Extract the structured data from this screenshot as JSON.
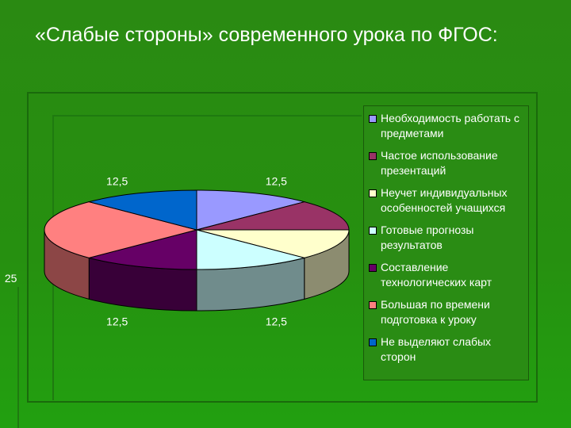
{
  "title": "«Слабые стороны» современного урока по ФГОС:",
  "chart_data": {
    "type": "pie",
    "legend_position": "right",
    "slices": [
      {
        "label": "Необходимость работать с предметами",
        "value": 12.5,
        "data_label": "12,5",
        "color": "#9999ff"
      },
      {
        "label": "Частое использование презентаций",
        "value": 12.5,
        "data_label": "12,5",
        "color": "#993366"
      },
      {
        "label": "Неучет индивидуальных особенностей учащихся",
        "value": 12.5,
        "data_label": "12,5",
        "color": "#ffffcc"
      },
      {
        "label": "Готовые прогнозы результатов",
        "value": 12.5,
        "data_label": "12,5",
        "color": "#ccffff"
      },
      {
        "label": "Составление технологических карт",
        "value": 12.5,
        "data_label": "12,5",
        "color": "#660066"
      },
      {
        "label": "Большая по времени подготовка к уроку",
        "value": 25,
        "data_label": "25",
        "color": "#ff8080"
      },
      {
        "label": "Не выделяют слабых сторон",
        "value": 12.5,
        "data_label": "12,5",
        "color": "#0066cc"
      }
    ]
  }
}
